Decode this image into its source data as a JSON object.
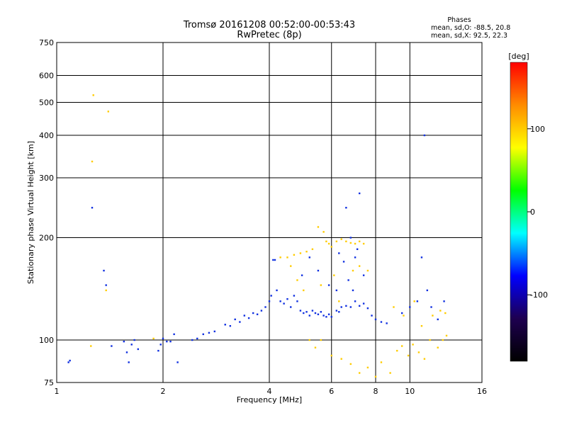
{
  "chart_data": {
    "type": "scatter",
    "title": "Tromsø 20161208 00:52:00-00:53:43",
    "subtitle": "RwPretec (8p)",
    "xlabel": "Frequency [MHz]",
    "ylabel": "Stationary phase Virtual Height [km]",
    "x_scale": "log",
    "y_scale": "log",
    "xlim": [
      1,
      16
    ],
    "ylim": [
      75,
      750
    ],
    "x_ticks": [
      1,
      2,
      4,
      6,
      8,
      10,
      16
    ],
    "x_tick_labels": [
      "1",
      "2",
      "4",
      "6",
      "8",
      "10",
      "16"
    ],
    "y_ticks": [
      75,
      100,
      200,
      300,
      400,
      500,
      600,
      750
    ],
    "y_tick_labels": [
      "75",
      "100",
      "200",
      "300",
      "400",
      "500",
      "600",
      "750"
    ],
    "grid": true,
    "legend": {
      "title": "Phases",
      "lines": [
        "mean, sd,O: -88.5, 20.8",
        "mean, sd,X:  92.5, 22.3"
      ],
      "placement": "top-right"
    },
    "colorbar": {
      "label": "[deg]",
      "range": [
        -180,
        180
      ],
      "ticks": [
        100,
        0,
        -100
      ],
      "tick_labels": [
        "100",
        "0",
        "-100"
      ],
      "colors": [
        "#ff0000",
        "#ff8c00",
        "#ffff00",
        "#00ff00",
        "#00ffff",
        "#0000ff",
        "#1e0050",
        "#000000"
      ]
    },
    "series": [
      {
        "name": "O",
        "color": "#1030e0",
        "points": [
          [
            1.08,
            86
          ],
          [
            1.09,
            87
          ],
          [
            1.26,
            245
          ],
          [
            1.36,
            160
          ],
          [
            1.38,
            145
          ],
          [
            1.43,
            96
          ],
          [
            1.55,
            99
          ],
          [
            1.58,
            92
          ],
          [
            1.6,
            86
          ],
          [
            1.63,
            97
          ],
          [
            1.66,
            100
          ],
          [
            1.7,
            94
          ],
          [
            1.94,
            93
          ],
          [
            1.97,
            97
          ],
          [
            2.0,
            101
          ],
          [
            2.05,
            99
          ],
          [
            2.1,
            99
          ],
          [
            2.15,
            104
          ],
          [
            2.2,
            86
          ],
          [
            2.42,
            100
          ],
          [
            2.5,
            101
          ],
          [
            2.6,
            104
          ],
          [
            2.7,
            105
          ],
          [
            2.8,
            106
          ],
          [
            3.0,
            111
          ],
          [
            3.1,
            110
          ],
          [
            3.2,
            115
          ],
          [
            3.3,
            113
          ],
          [
            3.4,
            118
          ],
          [
            3.5,
            116
          ],
          [
            3.6,
            120
          ],
          [
            3.7,
            119
          ],
          [
            3.8,
            122
          ],
          [
            3.9,
            125
          ],
          [
            4.0,
            130
          ],
          [
            4.05,
            135
          ],
          [
            4.1,
            172
          ],
          [
            4.15,
            172
          ],
          [
            4.2,
            140
          ],
          [
            4.3,
            130
          ],
          [
            4.4,
            128
          ],
          [
            4.5,
            132
          ],
          [
            4.6,
            125
          ],
          [
            4.7,
            135
          ],
          [
            4.8,
            130
          ],
          [
            4.9,
            122
          ],
          [
            5.0,
            120
          ],
          [
            5.1,
            121
          ],
          [
            5.2,
            118
          ],
          [
            5.3,
            122
          ],
          [
            5.4,
            120
          ],
          [
            5.5,
            119
          ],
          [
            5.6,
            121
          ],
          [
            5.7,
            118
          ],
          [
            5.8,
            117
          ],
          [
            5.9,
            119
          ],
          [
            6.0,
            117
          ],
          [
            6.2,
            122
          ],
          [
            6.3,
            121
          ],
          [
            6.4,
            125
          ],
          [
            6.6,
            126
          ],
          [
            6.8,
            125
          ],
          [
            7.0,
            130
          ],
          [
            7.2,
            126
          ],
          [
            7.4,
            128
          ],
          [
            7.6,
            124
          ],
          [
            7.8,
            118
          ],
          [
            8.0,
            115
          ],
          [
            8.3,
            113
          ],
          [
            8.6,
            112
          ],
          [
            4.95,
            155
          ],
          [
            5.2,
            175
          ],
          [
            5.5,
            160
          ],
          [
            6.5,
            170
          ],
          [
            6.7,
            150
          ],
          [
            7.0,
            175
          ],
          [
            6.3,
            180
          ],
          [
            6.8,
            200
          ],
          [
            7.1,
            185
          ],
          [
            7.4,
            155
          ],
          [
            6.9,
            140
          ],
          [
            6.2,
            140
          ],
          [
            5.9,
            145
          ],
          [
            7.2,
            270
          ],
          [
            6.6,
            245
          ],
          [
            11.0,
            400
          ],
          [
            10.8,
            175
          ],
          [
            10.5,
            130
          ],
          [
            11.5,
            125
          ],
          [
            12.0,
            115
          ],
          [
            9.5,
            120
          ],
          [
            10.0,
            125
          ],
          [
            11.2,
            140
          ],
          [
            12.5,
            130
          ]
        ]
      },
      {
        "name": "X",
        "color": "#ffcc00",
        "points": [
          [
            1.27,
            525
          ],
          [
            1.4,
            470
          ],
          [
            1.26,
            335
          ],
          [
            1.38,
            140
          ],
          [
            1.25,
            96
          ],
          [
            1.88,
            101
          ],
          [
            4.3,
            175
          ],
          [
            4.5,
            175
          ],
          [
            4.7,
            178
          ],
          [
            4.9,
            180
          ],
          [
            5.1,
            182
          ],
          [
            5.3,
            185
          ],
          [
            5.5,
            215
          ],
          [
            5.7,
            208
          ],
          [
            5.8,
            195
          ],
          [
            5.9,
            192
          ],
          [
            6.0,
            188
          ],
          [
            6.2,
            195
          ],
          [
            6.4,
            198
          ],
          [
            6.6,
            195
          ],
          [
            6.8,
            193
          ],
          [
            7.0,
            192
          ],
          [
            7.2,
            195
          ],
          [
            7.4,
            192
          ],
          [
            7.6,
            160
          ],
          [
            7.2,
            165
          ],
          [
            6.9,
            160
          ],
          [
            6.3,
            130
          ],
          [
            6.1,
            155
          ],
          [
            5.6,
            145
          ],
          [
            5.0,
            140
          ],
          [
            4.8,
            150
          ],
          [
            4.6,
            165
          ],
          [
            5.2,
            100
          ],
          [
            5.4,
            95
          ],
          [
            5.6,
            100
          ],
          [
            6.0,
            90
          ],
          [
            6.4,
            88
          ],
          [
            6.8,
            85
          ],
          [
            7.2,
            80
          ],
          [
            7.6,
            83
          ],
          [
            8.0,
            78
          ],
          [
            8.3,
            86
          ],
          [
            8.8,
            80
          ],
          [
            9.2,
            93
          ],
          [
            9.5,
            96
          ],
          [
            9.9,
            90
          ],
          [
            10.2,
            97
          ],
          [
            10.6,
            92
          ],
          [
            11.0,
            88
          ],
          [
            11.4,
            100
          ],
          [
            12.0,
            95
          ],
          [
            12.4,
            100
          ],
          [
            12.7,
            103
          ],
          [
            9.0,
            125
          ],
          [
            9.6,
            118
          ],
          [
            10.3,
            130
          ],
          [
            10.8,
            110
          ],
          [
            11.6,
            118
          ],
          [
            12.2,
            122
          ],
          [
            12.6,
            120
          ]
        ]
      }
    ]
  }
}
